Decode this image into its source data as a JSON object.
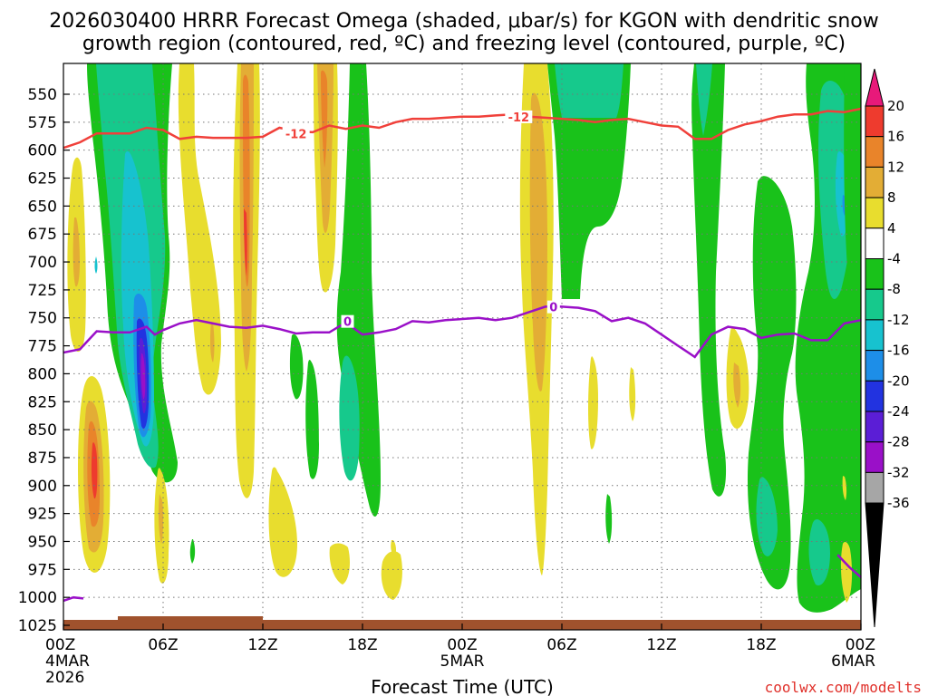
{
  "colors": {
    "red_contour": "#f0403a",
    "purple_contour": "#9a10c8",
    "ground": "#a0522d",
    "grid": "#777777"
  },
  "chart_data": {
    "type": "heatmap",
    "title_line1": "2026030400 HRRR Forecast Omega (shaded, μbar/s) for KGON with dendritic snow",
    "title_line2": "growth region (contoured, red, ºC) and freezing level (contoured, purple, ºC)",
    "xlabel": "Forecast Time (UTC)",
    "credit": "coolwx.com/modelts",
    "x_range_hours": [
      0,
      48
    ],
    "x_ticks": [
      {
        "hour": 0,
        "label": "00Z",
        "sub1": "4MAR",
        "sub2": "2026"
      },
      {
        "hour": 6,
        "label": "06Z",
        "sub1": "",
        "sub2": ""
      },
      {
        "hour": 12,
        "label": "12Z",
        "sub1": "",
        "sub2": ""
      },
      {
        "hour": 18,
        "label": "18Z",
        "sub1": "",
        "sub2": ""
      },
      {
        "hour": 24,
        "label": "00Z",
        "sub1": "5MAR",
        "sub2": ""
      },
      {
        "hour": 30,
        "label": "06Z",
        "sub1": "",
        "sub2": ""
      },
      {
        "hour": 36,
        "label": "12Z",
        "sub1": "",
        "sub2": ""
      },
      {
        "hour": 42,
        "label": "18Z",
        "sub1": "",
        "sub2": ""
      },
      {
        "hour": 48,
        "label": "00Z",
        "sub1": "6MAR",
        "sub2": ""
      }
    ],
    "y_range_hpa": [
      530,
      1038
    ],
    "y_ticks": [
      550,
      575,
      600,
      625,
      650,
      675,
      700,
      725,
      750,
      775,
      800,
      825,
      850,
      875,
      900,
      925,
      950,
      975,
      1000,
      1025
    ],
    "colorbar": {
      "labels": [
        "20",
        "16",
        "12",
        "8",
        "4",
        "-4",
        "-8",
        "-12",
        "-16",
        "-20",
        "-24",
        "-28",
        "-32",
        "-36"
      ],
      "levels": [
        {
          "range": "> 20",
          "color": "#e8197a"
        },
        {
          "range": "16 to 20",
          "color": "#ee3b2e"
        },
        {
          "range": "12 to 16",
          "color": "#e9842a"
        },
        {
          "range": "8 to 12",
          "color": "#e3ad35"
        },
        {
          "range": "4 to 8",
          "color": "#e8dd2e"
        },
        {
          "range": "-4 to 4",
          "color": "#ffffff"
        },
        {
          "range": "-8 to -4",
          "color": "#19c21a"
        },
        {
          "range": "-12 to -8",
          "color": "#16c98c"
        },
        {
          "range": "-16 to -12",
          "color": "#17c2cf"
        },
        {
          "range": "-20 to -16",
          "color": "#1d8ee8"
        },
        {
          "range": "-24 to -20",
          "color": "#2233e0"
        },
        {
          "range": "-28 to -24",
          "color": "#5b1ed6"
        },
        {
          "range": "-32 to -28",
          "color": "#9a10c8"
        },
        {
          "range": "-36 to -32",
          "color": "#a6a6a6"
        },
        {
          "range": "< -36",
          "color": "#000000"
        }
      ]
    },
    "contour_minus12C": {
      "label": "-12",
      "hours": [
        0,
        1,
        2,
        4,
        5,
        6,
        7,
        8,
        9,
        10,
        11,
        12,
        13,
        14,
        15,
        16,
        17,
        18,
        19,
        20,
        21,
        22,
        23,
        24,
        25,
        26,
        27,
        28,
        29,
        30,
        31,
        32,
        33,
        34,
        35,
        36,
        37,
        38,
        39,
        40,
        41,
        42,
        43,
        44,
        45,
        46,
        47,
        48
      ],
      "pressure": [
        598,
        593,
        585,
        585,
        580,
        582,
        590,
        588,
        589,
        589,
        589,
        588,
        580,
        583,
        584,
        578,
        581,
        578,
        580,
        575,
        572,
        572,
        571,
        570,
        570,
        569,
        568,
        570,
        571,
        572,
        573,
        575,
        573,
        572,
        575,
        578,
        579,
        590,
        590,
        582,
        577,
        574,
        570,
        568,
        568,
        565,
        566,
        563
      ],
      "label_positions": [
        {
          "hour": 14.0,
          "p": 586
        },
        {
          "hour": 27.4,
          "p": 571
        }
      ]
    },
    "contour_0C": {
      "label": "0",
      "hours": [
        0,
        1,
        1.5,
        2,
        3,
        4,
        5,
        5.5,
        6,
        7,
        8,
        9,
        10,
        11,
        12,
        13,
        14,
        15,
        16,
        17,
        18,
        19,
        20,
        21,
        22,
        23,
        24,
        25,
        26,
        27,
        28,
        29,
        30,
        31,
        32,
        33,
        34,
        35,
        36,
        37,
        38,
        39,
        40,
        41,
        42,
        43,
        44,
        45,
        46,
        47,
        48
      ],
      "pressure": [
        781,
        778,
        770,
        762,
        763,
        763,
        758,
        765,
        761,
        755,
        752,
        755,
        758,
        759,
        757,
        760,
        764,
        763,
        763,
        754,
        765,
        763,
        760,
        753,
        754,
        752,
        751,
        750,
        752,
        750,
        745,
        740,
        740,
        741,
        744,
        753,
        750,
        755,
        765,
        775,
        785,
        765,
        758,
        760,
        768,
        765,
        764,
        770,
        770,
        755,
        752
      ],
      "label_positions": [
        {
          "hour": 17.1,
          "p": 754
        },
        {
          "hour": 29.5,
          "p": 741
        }
      ]
    },
    "contour_0C_low": {
      "hours": [
        0,
        0.6,
        1.2
      ],
      "pressure": [
        1003,
        1000,
        1001
      ]
    },
    "contour_0C_right": {
      "hours": [
        46.6,
        47.3,
        48
      ],
      "pressure": [
        962,
        973,
        982
      ]
    },
    "omega_cells": [
      {
        "sign": "+",
        "max": 16,
        "hour_center": 1.8,
        "p_top": 790,
        "p_bottom": 960
      },
      {
        "sign": "+",
        "max": 8,
        "hour_center": 0.8,
        "p_top": 590,
        "p_bottom": 780
      },
      {
        "sign": "-",
        "min": -28,
        "hour_center": 5.0,
        "p_top": 535,
        "p_bottom": 870
      },
      {
        "sign": "+",
        "max": 12,
        "hour_center": 11.0,
        "p_top": 540,
        "p_bottom": 920
      },
      {
        "sign": "+",
        "max": 12,
        "hour_center": 15.8,
        "p_top": 530,
        "p_bottom": 720
      },
      {
        "sign": "-",
        "min": -12,
        "hour_center": 17.3,
        "p_top": 740,
        "p_bottom": 960
      },
      {
        "sign": "-",
        "min": -8,
        "hour_center": 18.0,
        "p_top": 550,
        "p_bottom": 900
      },
      {
        "sign": "+",
        "max": 12,
        "hour_center": 29.2,
        "p_top": 530,
        "p_bottom": 980
      },
      {
        "sign": "-",
        "min": -12,
        "hour_center": 32.5,
        "p_top": 530,
        "p_bottom": 700
      },
      {
        "sign": "-",
        "min": -8,
        "hour_center": 39.4,
        "p_top": 530,
        "p_bottom": 1000
      },
      {
        "sign": "+",
        "max": 12,
        "hour_center": 41.2,
        "p_top": 750,
        "p_bottom": 870
      },
      {
        "sign": "-",
        "min": -12,
        "hour_center": 42.6,
        "p_top": 690,
        "p_bottom": 970
      },
      {
        "sign": "-",
        "min": -16,
        "hour_center": 46.6,
        "p_top": 530,
        "p_bottom": 1000
      }
    ],
    "ground_level_hpa": 1032
  }
}
